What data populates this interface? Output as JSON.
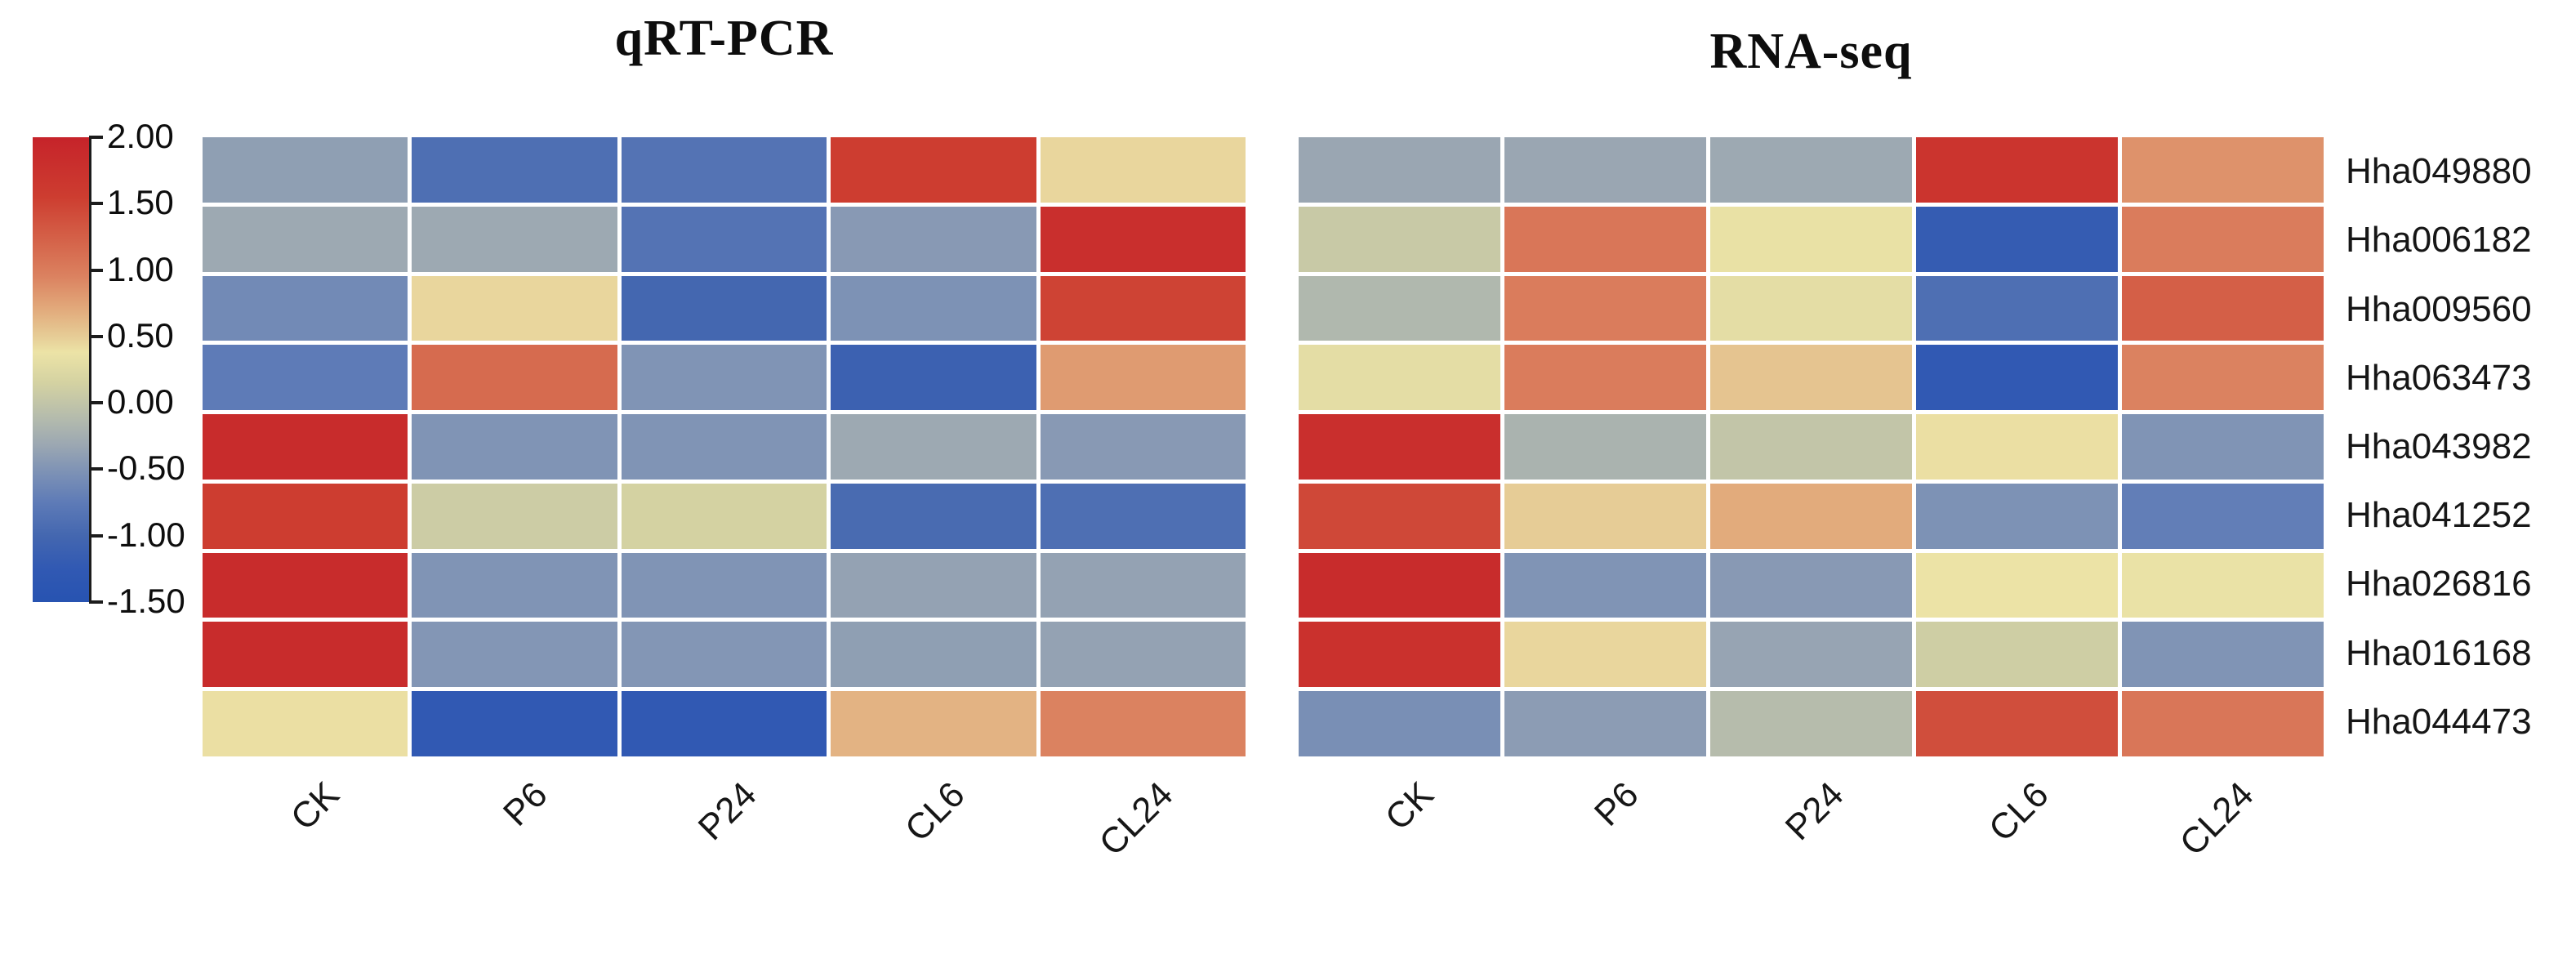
{
  "figure": {
    "background": "#ffffff",
    "titles": {
      "left": "qRT-PCR",
      "right": "RNA-seq"
    },
    "colorbar": {
      "position": "left",
      "vmin": -1.5,
      "vmax": 2.0,
      "tick_labels": [
        "2.00",
        "1.50",
        "1.00",
        "0.50",
        "0.00",
        "-0.50",
        "-1.00",
        "-1.50"
      ],
      "tick_values": [
        2.0,
        1.5,
        1.0,
        0.5,
        0.0,
        -0.5,
        -1.0,
        -1.5
      ],
      "gradient_stops": [
        [
          2.0,
          "#c6232a"
        ],
        [
          1.55,
          "#cd3d30"
        ],
        [
          1.2,
          "#d5654b"
        ],
        [
          0.95,
          "#db8260"
        ],
        [
          0.7,
          "#e2ab7c"
        ],
        [
          0.5,
          "#e6cc96"
        ],
        [
          0.38,
          "#ece3a6"
        ],
        [
          0.15,
          "#d4d2a2"
        ],
        [
          0.0,
          "#c2c5a8"
        ],
        [
          -0.15,
          "#b0b8ae"
        ],
        [
          -0.32,
          "#9ba7b2"
        ],
        [
          -0.5,
          "#8094b5"
        ],
        [
          -0.75,
          "#5e7bb7"
        ],
        [
          -1.0,
          "#4467b0"
        ],
        [
          -1.25,
          "#3159b3"
        ],
        [
          -1.5,
          "#2753b1"
        ]
      ]
    },
    "cell_gap_color": "#ffffff"
  },
  "chart_data": [
    {
      "type": "heatmap",
      "title": "qRT-PCR",
      "categories": [
        "CK",
        "P6",
        "P24",
        "CL6",
        "CL24"
      ],
      "rows": [
        "Hha049880",
        "Hha006182",
        "Hha009560",
        "Hha063473",
        "Hha043982",
        "Hha041252",
        "Hha026816",
        "Hha016168",
        "Hha044473"
      ],
      "values": [
        [
          -0.4,
          -0.9,
          -0.85,
          1.55,
          0.45
        ],
        [
          -0.3,
          -0.3,
          -0.85,
          -0.45,
          1.8
        ],
        [
          -0.6,
          0.45,
          -1.0,
          -0.52,
          1.5
        ],
        [
          -0.75,
          1.15,
          -0.5,
          -1.1,
          0.8
        ],
        [
          1.85,
          -0.5,
          -0.5,
          -0.3,
          -0.45
        ],
        [
          1.55,
          0.08,
          0.15,
          -0.95,
          -0.9
        ],
        [
          1.85,
          -0.5,
          -0.5,
          -0.37,
          -0.37
        ],
        [
          1.85,
          -0.48,
          -0.48,
          -0.4,
          -0.37
        ],
        [
          0.4,
          -1.25,
          -1.25,
          0.65,
          0.95
        ]
      ],
      "vmin": -1.5,
      "vmax": 2.0,
      "colormap": "red-cream-blue diverging (shared left colorbar)",
      "row_labels_shown": "shared, printed right of RNA-seq panel",
      "x_tick_rotation_deg": 45
    },
    {
      "type": "heatmap",
      "title": "RNA-seq",
      "categories": [
        "CK",
        "P6",
        "P24",
        "CL6",
        "CL24"
      ],
      "rows": [
        "Hha049880",
        "Hha006182",
        "Hha009560",
        "Hha063473",
        "Hha043982",
        "Hha041252",
        "Hha026816",
        "Hha016168",
        "Hha044473"
      ],
      "values": [
        [
          -0.33,
          -0.33,
          -0.3,
          1.7,
          0.85
        ],
        [
          0.05,
          1.05,
          0.35,
          -1.2,
          1.0
        ],
        [
          -0.15,
          1.0,
          0.3,
          -0.9,
          1.25
        ],
        [
          0.3,
          1.0,
          0.55,
          -1.25,
          0.95
        ],
        [
          1.8,
          -0.2,
          0.0,
          0.4,
          -0.5
        ],
        [
          1.45,
          0.5,
          0.7,
          -0.52,
          -0.72
        ],
        [
          1.85,
          -0.5,
          -0.45,
          0.38,
          0.36
        ],
        [
          1.75,
          0.45,
          -0.35,
          0.1,
          -0.5
        ],
        [
          -0.55,
          -0.42,
          -0.1,
          1.4,
          1.05
        ]
      ],
      "vmin": -1.5,
      "vmax": 2.0,
      "colormap": "red-cream-blue diverging (shared left colorbar)",
      "x_tick_rotation_deg": 45
    }
  ]
}
